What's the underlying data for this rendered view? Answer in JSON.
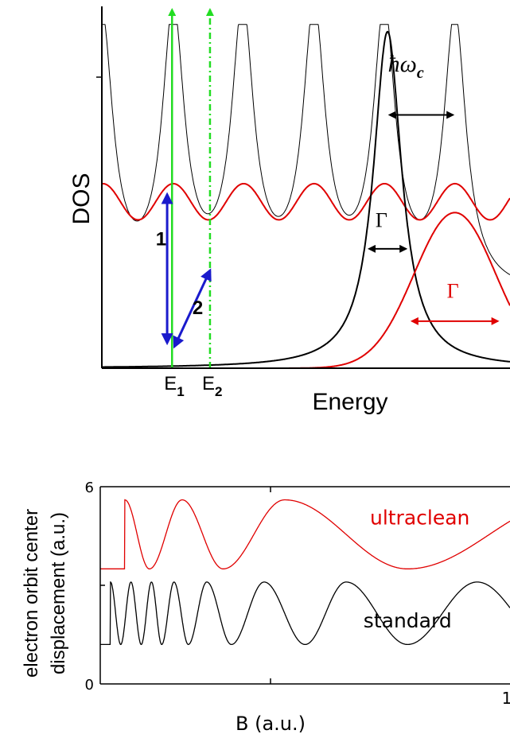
{
  "chart_data": [
    {
      "type": "line",
      "title": "",
      "xlabel": "Energy",
      "ylabel": "DOS",
      "xlim": [
        0,
        10
      ],
      "ylim": [
        0,
        1
      ],
      "x_tick_labels": [
        {
          "main": "E",
          "sub": "1",
          "x": 1.72
        },
        {
          "main": "E",
          "sub": "2",
          "x": 2.65
        }
      ],
      "series": [
        {
          "name": "",
          "color": "#000000",
          "style": "thin",
          "kind": "landau_levels",
          "centers": [
            0,
            1.75,
            3.45,
            5.2,
            6.92,
            8.65
          ],
          "peak": 0.95,
          "baseline": 0.2,
          "half_width": 0.33
        },
        {
          "name": "",
          "color": "#e00000",
          "style": "oscillation",
          "kind": "cosine",
          "mean": 0.46,
          "amplitude": 0.05,
          "period": 1.725,
          "phase_center": 1.75
        },
        {
          "name": "",
          "color": "#000000",
          "style": "lorentzian",
          "center": 7.0,
          "peak": 0.93,
          "half_width": 0.42
        },
        {
          "name": "",
          "color": "#e00000",
          "style": "gaussian",
          "center": 8.65,
          "peak": 0.43,
          "sigma": 1.0
        }
      ],
      "vertical_lines": [
        {
          "x": 1.72,
          "color": "#22dd22",
          "style": "solid",
          "arrow": true
        },
        {
          "x": 2.65,
          "color": "#22dd22",
          "style": "dashdot",
          "arrow": true
        }
      ],
      "annotations": [
        {
          "text": "1",
          "color": "#000000",
          "x": 1.45,
          "y": 0.34,
          "bold": true
        },
        {
          "text": "2",
          "color": "#000000",
          "x": 2.35,
          "y": 0.15,
          "bold": true
        },
        {
          "text": "ħω",
          "sub": "c",
          "color": "#000000",
          "x": 7.45,
          "y": 0.82,
          "italic": true
        },
        {
          "text": "Γ",
          "color": "#000000",
          "x": 6.85,
          "y": 0.39
        },
        {
          "text": "Γ",
          "color": "#e00000",
          "x": 8.6,
          "y": 0.195
        }
      ],
      "arrows": [
        {
          "from": [
            1.6,
            0.07
          ],
          "to": [
            1.6,
            0.48
          ],
          "color": "#1a1acc",
          "double": true,
          "label": "1"
        },
        {
          "from": [
            1.78,
            0.06
          ],
          "to": [
            2.65,
            0.27
          ],
          "color": "#1a1acc",
          "double": true,
          "label": "2"
        },
        {
          "from": [
            7.05,
            0.7
          ],
          "to": [
            8.6,
            0.7
          ],
          "color": "#000000",
          "double": true,
          "label": "ħω_c"
        },
        {
          "from": [
            6.55,
            0.33
          ],
          "to": [
            7.45,
            0.33
          ],
          "color": "#000000",
          "double": true,
          "label": "Γ"
        },
        {
          "from": [
            7.6,
            0.13
          ],
          "to": [
            9.7,
            0.13
          ],
          "color": "#e00000",
          "double": true,
          "label": "Γ"
        }
      ]
    },
    {
      "type": "line",
      "title": "",
      "xlabel": "B (a.u.)",
      "ylabel_lines": [
        "electron orbit center",
        "displacement (a.u.)"
      ],
      "xlim": [
        0,
        1
      ],
      "ylim": [
        0,
        6
      ],
      "x_tick_labels": [
        {
          "text": "1",
          "x": 1
        }
      ],
      "y_tick_labels": [
        {
          "text": "0",
          "y": 0
        },
        {
          "text": "6",
          "y": 6
        }
      ],
      "series": [
        {
          "name": "ultraclean",
          "color": "#e00000",
          "mean": 4.55,
          "amplitude": 1.05,
          "turning_points": [
            0.06,
            0.12,
            0.2,
            0.3,
            0.45,
            0.75,
            1.15
          ]
        },
        {
          "name": "standard",
          "color": "#000000",
          "mean": 2.15,
          "amplitude": 0.95,
          "turning_points": [
            0.025,
            0.05,
            0.075,
            0.1,
            0.125,
            0.15,
            0.18,
            0.215,
            0.26,
            0.32,
            0.4,
            0.5,
            0.6,
            0.75,
            0.92,
            1.1
          ]
        }
      ],
      "annotations": [
        {
          "text": "ultraclean",
          "color": "#e00000",
          "x": 0.78,
          "y": 4.85
        },
        {
          "text": "standard",
          "color": "#000000",
          "x": 0.75,
          "y": 1.72
        }
      ]
    }
  ]
}
